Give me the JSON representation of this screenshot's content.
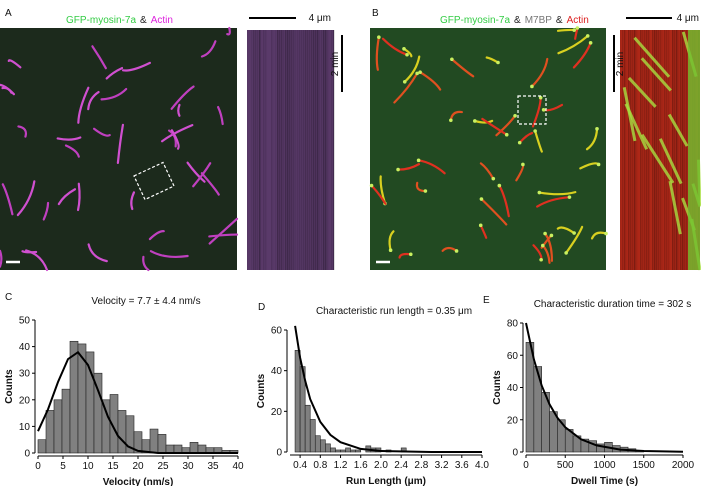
{
  "images": [
    {
      "label": "A",
      "caption": [
        {
          "text": "GFP-myosin-7a",
          "color": "#33cc44"
        },
        {
          "text": "&",
          "color": "#222222"
        },
        {
          "text": "Actin",
          "color": "#dd22dd"
        }
      ],
      "scale_x": "4 μm",
      "scale_t": "2 min"
    },
    {
      "label": "B",
      "caption": [
        {
          "text": "GFP-myosin-7a",
          "color": "#33cc44"
        },
        {
          "text": "&",
          "color": "#222222"
        },
        {
          "text": "M7BP",
          "color": "#777777"
        },
        {
          "text": "&",
          "color": "#222222"
        },
        {
          "text": "Actin",
          "color": "#dd2222"
        }
      ],
      "scale_x": "4 μm",
      "scale_t": "2 min"
    }
  ],
  "chart_data": [
    {
      "type": "histogram",
      "label": "C",
      "title": "Velocity = 7.7 ± 4.4 nm/s",
      "x_label": "Velocity (nm/s)",
      "y_label": "Counts",
      "color": "#808080",
      "bins": [
        0,
        1.6,
        3.2,
        4.8,
        6.4,
        8,
        9.6,
        11.2,
        12.8,
        14.4,
        16,
        17.6,
        19.2,
        20.8,
        22.4,
        24,
        25.6,
        27.2,
        28.8,
        30.4,
        32,
        33.6,
        35.2,
        36.8,
        38.4,
        40
      ],
      "counts": [
        5,
        16,
        20,
        24,
        42,
        41,
        38,
        30,
        20,
        22,
        16,
        14,
        8,
        5,
        9,
        7,
        3,
        3,
        2,
        4,
        3,
        2,
        2,
        1,
        1
      ],
      "fit": {
        "x": [
          0,
          2,
          4,
          6,
          8,
          10,
          12,
          14,
          16,
          18,
          20,
          24,
          40
        ],
        "y": [
          8.2,
          16.4,
          26.7,
          35.3,
          37.9,
          33.1,
          23.6,
          13.6,
          6.4,
          2.5,
          0.8,
          0,
          0
        ]
      },
      "xlim": [
        0,
        40
      ],
      "ylim": [
        0,
        50
      ],
      "xticks": [
        0,
        5,
        10,
        15,
        20,
        25,
        30,
        35,
        40
      ],
      "yticks": [
        0,
        10,
        20,
        30,
        40,
        50
      ]
    },
    {
      "type": "histogram",
      "label": "D",
      "title": "Characteristic run length = 0.35 μm",
      "x_label": "Run Length (μm)",
      "y_label": "Counts",
      "color": "#808080",
      "bins": [
        0.3,
        0.4,
        0.5,
        0.6,
        0.7,
        0.8,
        0.9,
        1.0,
        1.1,
        1.2,
        1.3,
        1.4,
        1.5,
        1.6,
        1.7,
        1.8,
        1.9,
        2.0,
        2.1,
        2.2,
        2.3,
        2.4,
        2.5
      ],
      "counts": [
        50,
        42,
        23,
        16,
        8,
        6,
        4,
        2,
        1,
        1,
        2,
        1,
        1,
        0,
        3,
        2,
        2,
        0,
        1,
        0,
        0,
        2
      ],
      "fit": {
        "x": [
          0.3,
          0.4,
          0.5,
          0.6,
          0.8,
          1.0,
          1.2,
          1.6,
          2.0,
          3.0,
          4.0
        ],
        "y": [
          62,
          46.4,
          35,
          26,
          14.8,
          8.4,
          4.8,
          1.5,
          0.5,
          0,
          0
        ]
      },
      "xlim": [
        0.2,
        4.0
      ],
      "ylim": [
        0,
        60
      ],
      "xticks": [
        0.4,
        0.8,
        1.2,
        1.6,
        {
          "value": 2,
          "label": "2.0"
        },
        2.4,
        2.8,
        3.2,
        3.6,
        {
          "value": 4,
          "label": "4.0"
        }
      ],
      "yticks": [
        0,
        20,
        40,
        60
      ]
    },
    {
      "type": "histogram",
      "label": "E",
      "title": "Characteristic duration time = 302 s",
      "x_label": "Dwell Time (s)",
      "y_label": "Counts",
      "color": "#808080",
      "bins": [
        0,
        100,
        200,
        300,
        400,
        500,
        600,
        700,
        800,
        900,
        1000,
        1100,
        1200,
        1300,
        1400,
        1500
      ],
      "counts": [
        68,
        53,
        37,
        25,
        20,
        14,
        10,
        8,
        7,
        5,
        6,
        4,
        3,
        2,
        1
      ],
      "fit": {
        "x": [
          0,
          100,
          200,
          300,
          400,
          500,
          700,
          900,
          1200,
          1500,
          2000
        ],
        "y": [
          80,
          57.4,
          41.2,
          29.6,
          21.3,
          15.3,
          7.9,
          4.1,
          1.5,
          0.6,
          0.1
        ]
      },
      "xlim": [
        0,
        2000
      ],
      "ylim": [
        0,
        80
      ],
      "xticks": [
        0,
        500,
        1000,
        1500,
        2000
      ],
      "yticks": [
        0,
        20,
        40,
        60,
        80
      ]
    }
  ]
}
